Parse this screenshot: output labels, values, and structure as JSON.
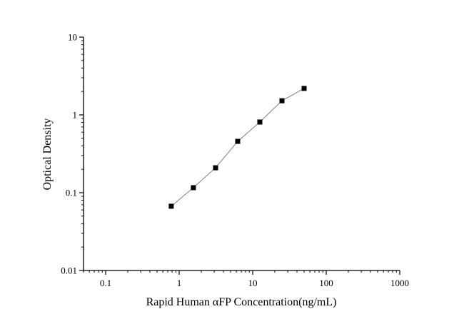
{
  "chart_data": {
    "type": "scatter",
    "title": "",
    "xlabel": "Rapid Human αFP Concentration(ng/mL)",
    "ylabel": "Optical Density",
    "x_scale": "log",
    "y_scale": "log",
    "xlim": [
      0.05,
      1000
    ],
    "ylim": [
      0.01,
      10
    ],
    "x_ticks": [
      0.1,
      1,
      10,
      100,
      1000
    ],
    "x_tick_labels": [
      "0.1",
      "1",
      "10",
      "100",
      "1000"
    ],
    "y_ticks": [
      0.01,
      0.1,
      1,
      10
    ],
    "y_tick_labels": [
      "0.01",
      "0.1",
      "1",
      "10"
    ],
    "grid": false,
    "marker": "square",
    "colors": {
      "marker": "#000000",
      "line": "#808080"
    },
    "x": [
      0.78,
      1.56,
      3.125,
      6.25,
      12.5,
      25,
      50
    ],
    "y": [
      0.067,
      0.116,
      0.209,
      0.457,
      0.81,
      1.52,
      2.19
    ]
  }
}
